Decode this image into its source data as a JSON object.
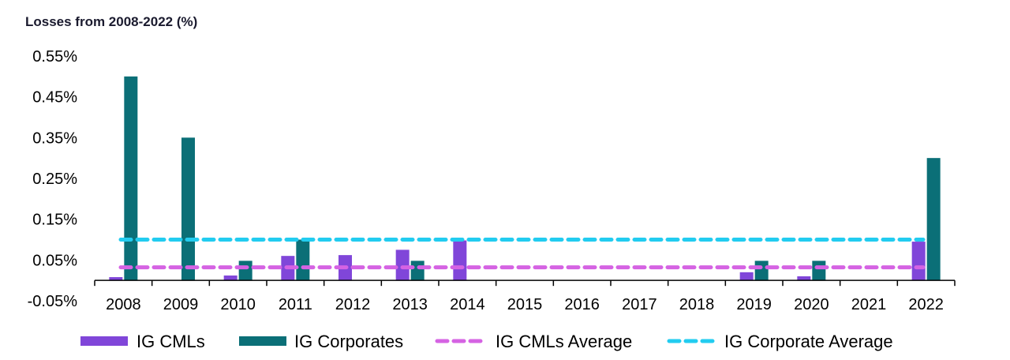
{
  "chart_data": {
    "type": "bar",
    "title": "Losses from 2008-2022 (%)",
    "xlabel": "",
    "ylabel": "",
    "categories": [
      "2008",
      "2009",
      "2010",
      "2011",
      "2012",
      "2013",
      "2014",
      "2015",
      "2016",
      "2017",
      "2018",
      "2019",
      "2020",
      "2021",
      "2022"
    ],
    "ylim": [
      -0.05,
      0.55
    ],
    "yticks": [
      -0.05,
      0.05,
      0.15,
      0.25,
      0.35,
      0.45,
      0.55
    ],
    "ytick_labels": [
      "-0.05%",
      "0.05%",
      "0.15%",
      "0.25%",
      "0.35%",
      "0.45%",
      "0.55%"
    ],
    "grid": false,
    "legend_position": "bottom",
    "series": [
      {
        "name": "IG CMLs",
        "kind": "bar",
        "color": "#8046d9",
        "values": [
          0.008,
          0,
          0.012,
          0.06,
          0.062,
          0.075,
          0.098,
          0,
          0,
          0,
          0,
          0.02,
          0.01,
          0,
          0.095
        ]
      },
      {
        "name": "IG Corporates",
        "kind": "bar",
        "color": "#0b6f77",
        "values": [
          0.5,
          0.35,
          0.048,
          0.1,
          0,
          0.048,
          0,
          0,
          0,
          0,
          0,
          0.048,
          0.048,
          0,
          0.3
        ]
      },
      {
        "name": "IG CMLs Average",
        "kind": "line",
        "style": "dashed",
        "color": "#d563e3",
        "value": 0.032
      },
      {
        "name": "IG Corporate Average",
        "kind": "line",
        "style": "dashed",
        "color": "#22ccf0",
        "value": 0.1
      }
    ]
  }
}
